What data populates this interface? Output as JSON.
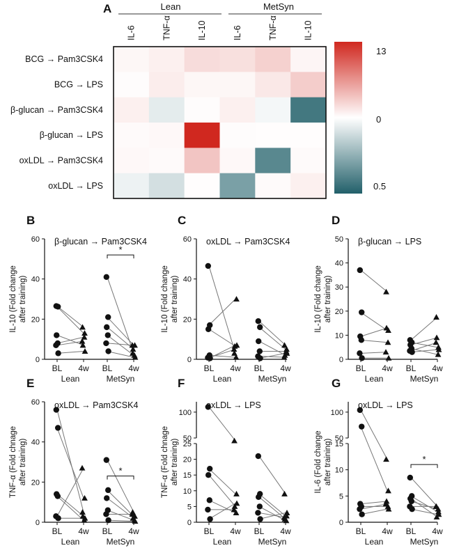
{
  "figure": {
    "panel_a": {
      "letter": "A",
      "groups": [
        "Lean",
        "MetSyn"
      ],
      "columns": [
        "IL-6",
        "TNF-α",
        "IL-10",
        "IL-6",
        "TNF-α",
        "IL-10"
      ],
      "rows": [
        "BCG → Pam3CSK4",
        "BCG → LPS",
        "β-glucan → Pam3CSK4",
        "β-glucan → LPS",
        "oxLDL → Pam3CSK4",
        "oxLDL → LPS"
      ],
      "colorbar": {
        "max_label": "13",
        "mid_label": "0",
        "min_label": "0.5",
        "high_color": "#d0281f",
        "mid_color": "#ffffff",
        "low_color": "#22606a"
      }
    },
    "scatter_panels": [
      {
        "letter": "B",
        "title": "β-glucan → Pam3CSK4",
        "ylabel_line1": "IL-10 (Fold change",
        "ylabel_line2": "after training)"
      },
      {
        "letter": "C",
        "title": "oxLDL → Pam3CSK4",
        "ylabel_line1": "IL-10 (Fold change",
        "ylabel_line2": "after training)"
      },
      {
        "letter": "D",
        "title": "β-glucan → LPS",
        "ylabel_line1": "IL-10 (Fold change",
        "ylabel_line2": "after training)"
      },
      {
        "letter": "E",
        "title": "oxLDL → Pam3CSK4",
        "ylabel_line1": "TNF-α (Fold chnage",
        "ylabel_line2": "after training)"
      },
      {
        "letter": "F",
        "title": "oxLDL → LPS",
        "ylabel_line1": "TNF-α (Fold chnage",
        "ylabel_line2": "after training)"
      },
      {
        "letter": "G",
        "title": "oxLDL → LPS",
        "ylabel_line1": "IL-6 (Fold change",
        "ylabel_line2": "after training)"
      }
    ],
    "xaxis": {
      "timepoints": [
        "BL",
        "4w",
        "BL",
        "4w"
      ],
      "groups": [
        "Lean",
        "MetSyn"
      ]
    },
    "significance_label": "*"
  },
  "chart_data": [
    {
      "type": "heatmap",
      "panel": "A",
      "scale": {
        "min": 0.5,
        "center": 0,
        "max": 13
      },
      "x_groups": [
        "Lean",
        "MetSyn"
      ],
      "x": [
        "IL-6",
        "TNF-α",
        "IL-10",
        "IL-6",
        "TNF-α",
        "IL-10"
      ],
      "y": [
        "BCG → Pam3CSK4",
        "BCG → LPS",
        "β-glucan → Pam3CSK4",
        "β-glucan → LPS",
        "oxLDL → Pam3CSK4",
        "oxLDL → LPS"
      ],
      "values": [
        [
          0.5,
          0.9,
          2.1,
          1.9,
          2.8,
          0.6
        ],
        [
          0.2,
          1.1,
          0.5,
          0.5,
          1.4,
          3.0
        ],
        [
          0.9,
          -0.12,
          0.2,
          0.9,
          -0.05,
          -0.85
        ],
        [
          0.3,
          0.4,
          13.0,
          0.2,
          0.1,
          0.1
        ],
        [
          0.4,
          0.3,
          3.5,
          0.4,
          -0.75,
          0.3
        ],
        [
          -0.08,
          -0.2,
          0.1,
          -0.6,
          0.3,
          0.9
        ]
      ]
    },
    {
      "type": "scatter",
      "panel": "B",
      "title": "β-glucan → Pam3CSK4",
      "ylabel": "IL-10 (Fold change after training)",
      "ylim": [
        0,
        60
      ],
      "yticks": [
        0,
        20,
        40,
        60
      ],
      "groups": [
        {
          "name": "Lean",
          "bl": [
            26.5,
            26.2,
            12.0,
            8.0,
            7.0,
            3.0
          ],
          "w4": [
            16.0,
            13.0,
            7.0,
            11.0,
            9.0,
            4.0
          ]
        },
        {
          "name": "MetSyn",
          "bl": [
            41.0,
            21.0,
            16.0,
            12.0,
            8.0,
            4.0
          ],
          "w4": [
            3.0,
            7.0,
            5.0,
            2.0,
            7.0,
            1.0
          ]
        }
      ],
      "significance": [
        {
          "group": "MetSyn",
          "label": "*",
          "y": 52
        }
      ]
    },
    {
      "type": "scatter",
      "panel": "C",
      "title": "oxLDL → Pam3CSK4",
      "ylabel": "IL-10 (Fold change after training)",
      "ylim": [
        0,
        60
      ],
      "yticks": [
        0,
        20,
        40,
        60
      ],
      "groups": [
        {
          "name": "Lean",
          "bl": [
            46.5,
            17.0,
            15.0,
            2.0,
            0.8,
            0.5
          ],
          "w4": [
            3.0,
            30.0,
            6.5,
            1.0,
            5.0,
            7.0
          ]
        },
        {
          "name": "MetSyn",
          "bl": [
            19.0,
            16.0,
            9.0,
            4.0,
            1.5,
            0.5
          ],
          "w4": [
            7.0,
            5.0,
            2.0,
            4.0,
            1.0,
            3.0
          ]
        }
      ],
      "significance": []
    },
    {
      "type": "scatter",
      "panel": "D",
      "title": "β-glucan → LPS",
      "ylabel": "IL-10 (Fold change after training)",
      "ylim": [
        0,
        50
      ],
      "yticks": [
        0,
        10,
        20,
        30,
        40,
        50
      ],
      "groups": [
        {
          "name": "Lean",
          "bl": [
            37.0,
            19.5,
            9.5,
            8.0,
            2.5,
            0.5
          ],
          "w4": [
            28.0,
            12.0,
            13.0,
            7.0,
            3.0,
            0.5
          ]
        },
        {
          "name": "MetSyn",
          "bl": [
            8.0,
            7.0,
            6.0,
            4.5,
            3.5,
            3.0
          ],
          "w4": [
            17.5,
            5.0,
            9.0,
            2.0,
            7.0,
            4.0
          ]
        }
      ],
      "significance": []
    },
    {
      "type": "scatter",
      "panel": "E",
      "title": "oxLDL → Pam3CSK4",
      "ylabel": "TNF-α (Fold chnage after training)",
      "ylim": [
        0,
        60
      ],
      "yticks": [
        0,
        20,
        40,
        60
      ],
      "groups": [
        {
          "name": "Lean",
          "bl": [
            56.0,
            47.0,
            14.0,
            13.0,
            3.0,
            2.0
          ],
          "w4": [
            5.0,
            12.0,
            3.0,
            1.0,
            27.0,
            2.0
          ]
        },
        {
          "name": "MetSyn",
          "bl": [
            31.0,
            16.0,
            12.0,
            6.0,
            4.0,
            1.0
          ],
          "w4": [
            5.0,
            3.0,
            2.0,
            1.0,
            4.0,
            0.5
          ]
        }
      ],
      "significance": [
        {
          "group": "MetSyn",
          "label": "*",
          "y": 23
        }
      ]
    },
    {
      "type": "scatter",
      "panel": "F",
      "title": "oxLDL → LPS",
      "ylabel": "TNF-α (Fold chnage after training)",
      "ylim": [
        0,
        120
      ],
      "broken_axis": {
        "lower": [
          0,
          25
        ],
        "upper": [
          50,
          120
        ],
        "lower_ticks": [
          0,
          5,
          10,
          15,
          20,
          25
        ],
        "upper_ticks": [
          50,
          100
        ]
      },
      "groups": [
        {
          "name": "Lean",
          "bl": [
            110.0,
            17.0,
            15.0,
            7.0,
            4.0,
            1.0
          ],
          "w4": [
            40.0,
            9.0,
            5.0,
            3.0,
            4.0,
            6.0
          ]
        },
        {
          "name": "MetSyn",
          "bl": [
            21.0,
            9.0,
            8.0,
            5.0,
            3.0,
            1.0
          ],
          "w4": [
            9.0,
            2.0,
            1.0,
            0.5,
            1.5,
            3.0
          ]
        }
      ],
      "significance": []
    },
    {
      "type": "scatter",
      "panel": "G",
      "title": "oxLDL → LPS",
      "ylabel": "IL-6 (Fold change after training)",
      "ylim": [
        0,
        120
      ],
      "broken_axis": {
        "lower": [
          0,
          15
        ],
        "upper": [
          50,
          120
        ],
        "lower_ticks": [
          0,
          5,
          10,
          15
        ],
        "upper_ticks": [
          50,
          100
        ]
      },
      "groups": [
        {
          "name": "Lean",
          "bl": [
            104.0,
            72.0,
            3.5,
            3.0,
            2.5,
            1.5
          ],
          "w4": [
            12.0,
            6.0,
            4.0,
            3.0,
            3.5,
            2.5
          ]
        },
        {
          "name": "MetSyn",
          "bl": [
            8.5,
            5.0,
            4.5,
            4.0,
            3.0,
            2.5
          ],
          "w4": [
            3.0,
            2.0,
            1.0,
            2.5,
            3.0,
            1.5
          ]
        }
      ],
      "significance": [
        {
          "group": "MetSyn",
          "label": "*",
          "y": 11
        }
      ]
    }
  ]
}
